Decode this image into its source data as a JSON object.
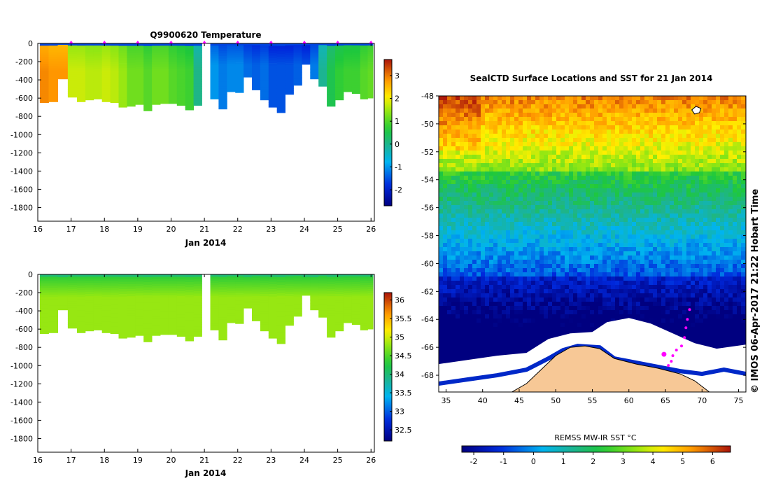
{
  "figure": {
    "credit": "© IMOS 06-Apr-2017 21:22 Hobart Time"
  },
  "colors": {
    "land": "#f7c896",
    "ice": "#ffffff",
    "frame": "#000000",
    "profile_marker": "#ff00ff",
    "station_marker": "#ff00ff"
  },
  "chart_data": [
    {
      "id": "temperature",
      "type": "heatmap",
      "title": "Q9900620  Temperature",
      "xlabel": "Jan 2014",
      "ylabel": "",
      "x_ticks": [
        "16",
        "17",
        "18",
        "19",
        "20",
        "21",
        "22",
        "23",
        "24",
        "25",
        "26"
      ],
      "xlim": [
        16,
        26.1
      ],
      "y_ticks": [
        "0",
        "-200",
        "-400",
        "-600",
        "-800",
        "-1000",
        "-1200",
        "-1400",
        "-1600",
        "-1800"
      ],
      "ylim": [
        -1950,
        0
      ],
      "colorbar_ticks": [
        "-2",
        "-1",
        "0",
        "1",
        "2",
        "3"
      ],
      "colorbar_range": [
        -2.7,
        3.7
      ],
      "profile_days": [
        16.2,
        16.45,
        16.75,
        17.05,
        17.3,
        17.55,
        17.8,
        18.05,
        18.3,
        18.55,
        18.8,
        19.05,
        19.3,
        19.55,
        19.8,
        20.05,
        20.3,
        20.55,
        20.8,
        21.05,
        21.3,
        21.55,
        21.8,
        22.05,
        22.3,
        22.55,
        22.8,
        23.05,
        23.3,
        23.55,
        23.8,
        24.05,
        24.3,
        24.55,
        24.8,
        25.05,
        25.3,
        25.55,
        25.8,
        26.0
      ],
      "profile_max_depth_m": [
        650,
        640,
        390,
        590,
        640,
        620,
        610,
        640,
        650,
        700,
        690,
        670,
        740,
        670,
        660,
        660,
        680,
        730,
        680,
        0,
        610,
        720,
        530,
        540,
        370,
        510,
        620,
        700,
        760,
        560,
        460,
        230,
        390,
        470,
        690,
        620,
        530,
        550,
        610,
        600
      ],
      "surface_temperature_C": [
        2.6,
        2.5,
        2.5,
        1.6,
        1.6,
        1.5,
        1.5,
        1.6,
        1.5,
        1.3,
        1.0,
        1.0,
        0.8,
        1.0,
        1.0,
        0.8,
        0.7,
        0.6,
        -0.3,
        -0.8,
        -1.4,
        -1.6,
        -1.5,
        -1.5,
        -1.7,
        -1.8,
        -1.7,
        -1.9,
        -1.9,
        -1.9,
        -1.8,
        -1.9,
        -1.6,
        -0.4,
        0.2,
        0.5,
        0.6,
        0.6,
        0.8,
        0.9
      ],
      "profile_marker_days": [
        17,
        18,
        19,
        20,
        21,
        22,
        23,
        24,
        25,
        26
      ]
    },
    {
      "id": "salinity",
      "type": "heatmap",
      "title": "",
      "xlabel": "Jan 2014",
      "ylabel": "",
      "x_ticks": [
        "16",
        "17",
        "18",
        "19",
        "20",
        "21",
        "22",
        "23",
        "24",
        "25",
        "26"
      ],
      "xlim": [
        16,
        26.1
      ],
      "y_ticks": [
        "0",
        "-200",
        "-400",
        "-600",
        "-800",
        "-1000",
        "-1200",
        "-1400",
        "-1600",
        "-1800"
      ],
      "ylim": [
        -1950,
        0
      ],
      "colorbar_ticks": [
        "32.5",
        "33",
        "33.5",
        "34",
        "34.5",
        "35",
        "35.5",
        "36"
      ],
      "colorbar_range": [
        32.2,
        36.2
      ],
      "deep_salinity_psu": 34.8,
      "surface_salinity_psu": 34.3
    },
    {
      "id": "sst_map",
      "type": "heatmap",
      "title": "SealCTD Surface Locations and SST for 21 Jan 2014",
      "xlabel": "",
      "ylabel": "",
      "x_ticks": [
        "35",
        "40",
        "45",
        "50",
        "55",
        "60",
        "65",
        "70",
        "75"
      ],
      "xlim": [
        34,
        76
      ],
      "y_ticks": [
        "-48",
        "-50",
        "-52",
        "-54",
        "-56",
        "-58",
        "-60",
        "-62",
        "-64",
        "-66",
        "-68"
      ],
      "ylim": [
        -69.2,
        -48
      ],
      "colorbar_label": "REMSS MW-IR SST °C",
      "colorbar_ticks": [
        "-2",
        "-1",
        "0",
        "1",
        "2",
        "3",
        "4",
        "5",
        "6"
      ],
      "colorbar_range": [
        -2.4,
        6.6
      ],
      "station_lon": [
        68.3,
        68.0,
        67.8,
        67.6,
        67.2,
        66.5,
        66.0,
        65.8,
        65.4,
        64.8
      ],
      "station_lat": [
        -63.3,
        -64.0,
        -64.6,
        -65.3,
        -65.9,
        -66.2,
        -66.6,
        -67.0,
        -67.3,
        -66.5
      ]
    }
  ]
}
